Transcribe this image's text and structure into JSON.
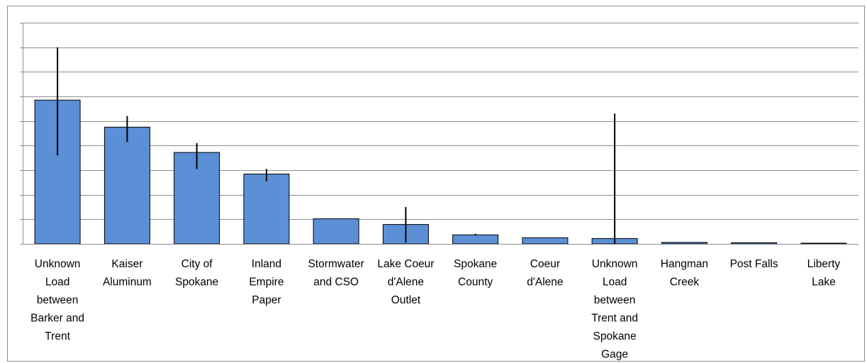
{
  "chart_data": {
    "type": "bar",
    "categories": [
      [
        "Unknown",
        "Load",
        "between",
        "Barker and",
        "Trent"
      ],
      [
        "Kaiser",
        "Aluminum"
      ],
      [
        "City of",
        "Spokane"
      ],
      [
        "Inland",
        "Empire",
        "Paper"
      ],
      [
        "Stormwater",
        "and CSO"
      ],
      [
        "Lake Coeur",
        "d'Alene",
        "Outlet"
      ],
      [
        "Spokane",
        "County"
      ],
      [
        "Coeur",
        "d'Alene"
      ],
      [
        "Unknown",
        "Load",
        "between",
        "Trent and",
        "Spokane",
        "Gage"
      ],
      [
        "Hangman",
        "Creek"
      ],
      [
        "Post Falls"
      ],
      [
        "Liberty",
        "Lake"
      ]
    ],
    "values": [
      5.85,
      4.75,
      3.72,
      2.84,
      1.02,
      0.79,
      0.37,
      0.25,
      0.22,
      0.06,
      0.05,
      0.03
    ],
    "error_low": [
      3.6,
      4.15,
      3.05,
      2.55,
      1.02,
      0.05,
      0.34,
      0.25,
      0.0,
      0.06,
      0.05,
      0.03
    ],
    "error_high": [
      8.0,
      5.2,
      4.1,
      3.05,
      1.02,
      1.5,
      0.41,
      0.25,
      5.3,
      0.06,
      0.05,
      0.03
    ],
    "ylim": [
      0,
      9
    ],
    "y_gridlines": [
      1,
      2,
      3,
      4,
      5,
      6,
      7,
      8,
      9
    ],
    "y_tick_labels_shown": false,
    "title": "",
    "xlabel": "",
    "ylabel": "",
    "grid": true,
    "legend": "none",
    "colors": {
      "bar_fill": "#5b8fd6",
      "bar_stroke": "#000000",
      "error_bar": "#000000",
      "gridline": "#8c8c8c",
      "axis": "#8c8c8c"
    }
  }
}
